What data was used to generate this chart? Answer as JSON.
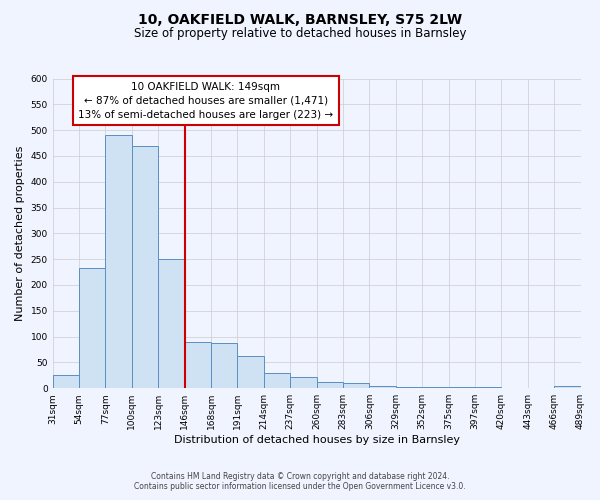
{
  "title": "10, OAKFIELD WALK, BARNSLEY, S75 2LW",
  "subtitle": "Size of property relative to detached houses in Barnsley",
  "bar_counts": [
    25,
    233,
    490,
    470,
    250,
    90,
    88,
    63,
    30,
    22,
    12,
    10,
    5,
    3,
    2,
    2,
    2,
    1,
    0,
    5
  ],
  "bin_labels": [
    "31sqm",
    "54sqm",
    "77sqm",
    "100sqm",
    "123sqm",
    "146sqm",
    "168sqm",
    "191sqm",
    "214sqm",
    "237sqm",
    "260sqm",
    "283sqm",
    "306sqm",
    "329sqm",
    "352sqm",
    "375sqm",
    "397sqm",
    "420sqm",
    "443sqm",
    "466sqm",
    "489sqm"
  ],
  "bar_color": "#cfe2f3",
  "bar_edge_color": "#5b8ec4",
  "xlabel": "Distribution of detached houses by size in Barnsley",
  "ylabel": "Number of detached properties",
  "ylim": [
    0,
    600
  ],
  "yticks": [
    0,
    50,
    100,
    150,
    200,
    250,
    300,
    350,
    400,
    450,
    500,
    550,
    600
  ],
  "red_line_bin_index": 5,
  "annotation_title": "10 OAKFIELD WALK: 149sqm",
  "annotation_line1": "← 87% of detached houses are smaller (1,471)",
  "annotation_line2": "13% of semi-detached houses are larger (223) →",
  "annotation_box_color": "#ffffff",
  "annotation_box_edge_color": "#cc0000",
  "red_line_color": "#cc0000",
  "footer1": "Contains HM Land Registry data © Crown copyright and database right 2024.",
  "footer2": "Contains public sector information licensed under the Open Government Licence v3.0.",
  "grid_color": "#cccccc",
  "background_color": "#f0f4ff",
  "title_fontsize": 10,
  "subtitle_fontsize": 8.5,
  "axis_label_fontsize": 8,
  "tick_fontsize": 6.5,
  "annotation_fontsize": 7.5,
  "footer_fontsize": 5.5
}
